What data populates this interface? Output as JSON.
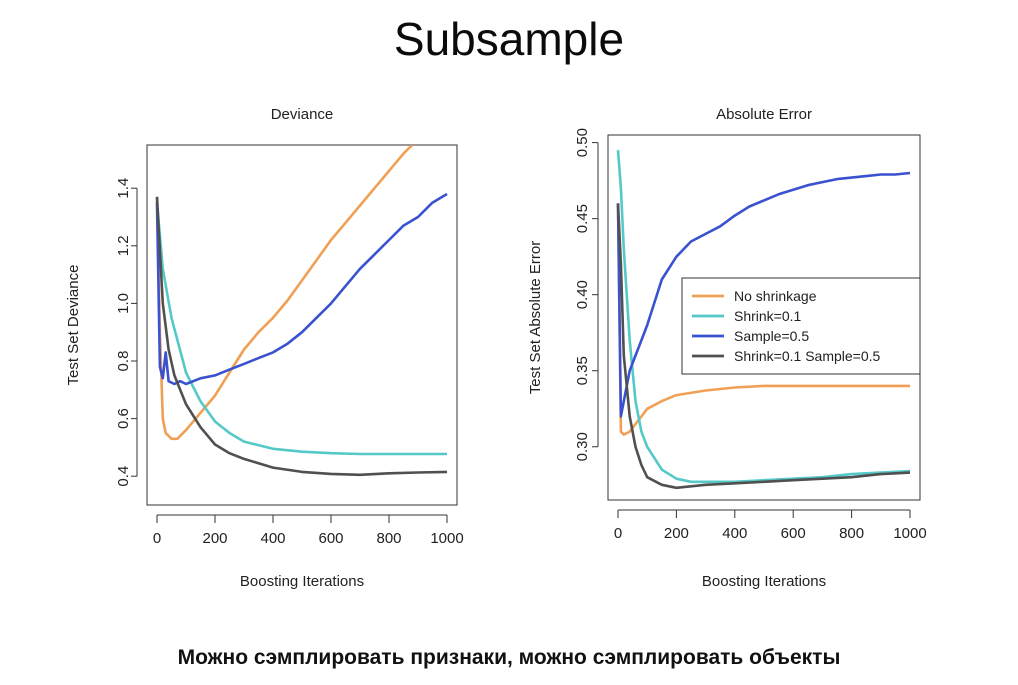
{
  "slide": {
    "title": "Subsample",
    "caption": "Можно сэмплировать признаки, можно сэмплировать объекты"
  },
  "colors": {
    "No shrinkage": "#f0a055",
    "Shrink=0.1": "#55c8c8",
    "Sample=0.5": "#3a52d0",
    "Shrink=0.1 Sample=0.5": "#505050"
  },
  "chart_data": [
    {
      "type": "line",
      "title": "Deviance",
      "xlabel": "Boosting Iterations",
      "ylabel": "Test Set Deviance",
      "xlim": [
        0,
        1000
      ],
      "ylim": [
        0.3,
        1.55
      ],
      "xticks": [
        0,
        200,
        400,
        600,
        800,
        1000
      ],
      "yticks": [
        0.4,
        0.6,
        0.8,
        1.0,
        1.2,
        1.4
      ],
      "ytick_labels": [
        "0.4",
        "0.6",
        "0.8",
        "1.0",
        "1.2",
        "1.4"
      ],
      "legend": null,
      "series": [
        {
          "name": "No shrinkage",
          "x": [
            0,
            10,
            20,
            30,
            50,
            70,
            100,
            150,
            200,
            250,
            300,
            350,
            400,
            450,
            500,
            550,
            600,
            650,
            700,
            750,
            800,
            850,
            880
          ],
          "y": [
            1.37,
            0.9,
            0.6,
            0.55,
            0.53,
            0.53,
            0.56,
            0.62,
            0.68,
            0.76,
            0.84,
            0.9,
            0.95,
            1.01,
            1.08,
            1.15,
            1.22,
            1.28,
            1.34,
            1.4,
            1.46,
            1.52,
            1.55
          ]
        },
        {
          "name": "Shrink=0.1",
          "x": [
            0,
            20,
            50,
            100,
            150,
            200,
            250,
            300,
            400,
            500,
            600,
            700,
            800,
            900,
            1000
          ],
          "y": [
            1.35,
            1.12,
            0.95,
            0.76,
            0.66,
            0.59,
            0.55,
            0.52,
            0.495,
            0.485,
            0.48,
            0.477,
            0.477,
            0.477,
            0.477
          ]
        },
        {
          "name": "Sample=0.5",
          "x": [
            0,
            10,
            20,
            30,
            40,
            60,
            80,
            100,
            150,
            200,
            250,
            300,
            350,
            400,
            450,
            500,
            550,
            600,
            650,
            700,
            750,
            800,
            850,
            900,
            950,
            1000
          ],
          "y": [
            1.35,
            0.78,
            0.74,
            0.83,
            0.73,
            0.72,
            0.73,
            0.72,
            0.74,
            0.75,
            0.77,
            0.79,
            0.81,
            0.83,
            0.86,
            0.9,
            0.95,
            1.0,
            1.06,
            1.12,
            1.17,
            1.22,
            1.27,
            1.3,
            1.35,
            1.38
          ]
        },
        {
          "name": "Shrink=0.1 Sample=0.5",
          "x": [
            0,
            20,
            40,
            60,
            100,
            150,
            200,
            250,
            300,
            400,
            500,
            600,
            700,
            800,
            900,
            1000
          ],
          "y": [
            1.37,
            1.0,
            0.84,
            0.75,
            0.65,
            0.57,
            0.51,
            0.48,
            0.46,
            0.43,
            0.415,
            0.408,
            0.405,
            0.41,
            0.413,
            0.415
          ]
        }
      ]
    },
    {
      "type": "line",
      "title": "Absolute Error",
      "xlabel": "Boosting Iterations",
      "ylabel": "Test Set Absolute Error",
      "xlim": [
        0,
        1000
      ],
      "ylim": [
        0.265,
        0.505
      ],
      "xticks": [
        0,
        200,
        400,
        600,
        800,
        1000
      ],
      "yticks": [
        0.3,
        0.35,
        0.4,
        0.45,
        0.5
      ],
      "ytick_labels": [
        "0.30",
        "0.35",
        "0.40",
        "0.45",
        "0.50"
      ],
      "legend": {
        "placement": "middle-right",
        "entries": [
          "No shrinkage",
          "Shrink=0.1",
          "Sample=0.5",
          "Shrink=0.1 Sample=0.5"
        ]
      },
      "series": [
        {
          "name": "No shrinkage",
          "x": [
            0,
            10,
            20,
            40,
            60,
            80,
            100,
            150,
            200,
            300,
            400,
            500,
            600,
            700,
            800,
            900,
            1000
          ],
          "y": [
            0.46,
            0.31,
            0.308,
            0.31,
            0.315,
            0.32,
            0.325,
            0.33,
            0.334,
            0.337,
            0.339,
            0.34,
            0.34,
            0.34,
            0.34,
            0.34,
            0.34
          ]
        },
        {
          "name": "Shrink=0.1",
          "x": [
            0,
            10,
            20,
            40,
            60,
            80,
            100,
            150,
            200,
            250,
            300,
            400,
            500,
            600,
            700,
            800,
            900,
            1000
          ],
          "y": [
            0.495,
            0.47,
            0.43,
            0.37,
            0.33,
            0.31,
            0.3,
            0.285,
            0.279,
            0.277,
            0.277,
            0.277,
            0.278,
            0.279,
            0.28,
            0.282,
            0.283,
            0.284
          ]
        },
        {
          "name": "Sample=0.5",
          "x": [
            0,
            10,
            20,
            40,
            60,
            80,
            100,
            150,
            200,
            250,
            300,
            350,
            400,
            450,
            500,
            550,
            600,
            650,
            700,
            750,
            800,
            850,
            900,
            950,
            1000
          ],
          "y": [
            0.46,
            0.32,
            0.33,
            0.35,
            0.36,
            0.37,
            0.38,
            0.41,
            0.425,
            0.435,
            0.44,
            0.445,
            0.452,
            0.458,
            0.462,
            0.466,
            0.469,
            0.472,
            0.474,
            0.476,
            0.477,
            0.478,
            0.479,
            0.479,
            0.48
          ]
        },
        {
          "name": "Shrink=0.1 Sample=0.5",
          "x": [
            0,
            10,
            20,
            40,
            60,
            80,
            100,
            150,
            200,
            250,
            300,
            400,
            500,
            600,
            700,
            800,
            900,
            1000
          ],
          "y": [
            0.46,
            0.42,
            0.36,
            0.32,
            0.3,
            0.288,
            0.28,
            0.275,
            0.273,
            0.274,
            0.275,
            0.276,
            0.277,
            0.278,
            0.279,
            0.28,
            0.282,
            0.283
          ]
        }
      ]
    }
  ]
}
